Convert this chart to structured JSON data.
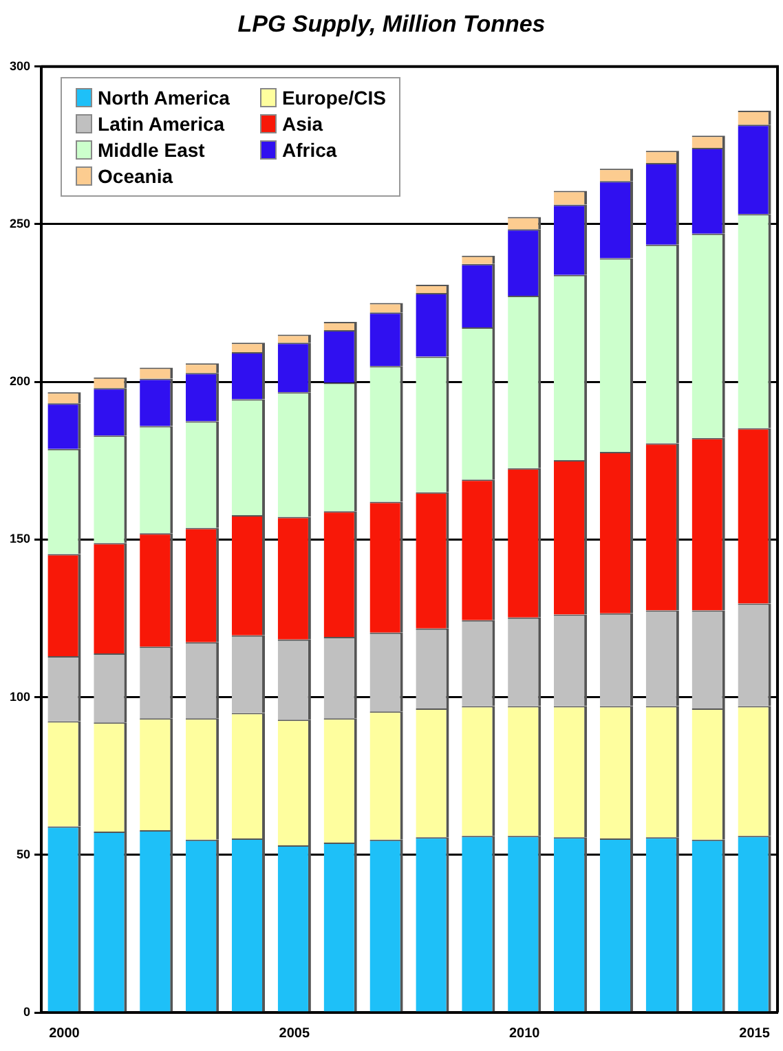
{
  "chart_data": {
    "type": "bar",
    "title": "LPG Supply, Million Tonnes",
    "stacked": true,
    "categories": [
      "2000",
      null,
      null,
      null,
      null,
      "2005",
      null,
      null,
      null,
      null,
      "2010",
      null,
      null,
      null,
      null,
      "2015"
    ],
    "ylim": [
      0,
      300
    ],
    "yticks": [
      0,
      50,
      100,
      150,
      200,
      250,
      300
    ],
    "grid": "y",
    "legend": "top left",
    "series": [
      {
        "name": "North America",
        "color": "#1ec0f8",
        "values": [
          59,
          57.4,
          57.8,
          54.8,
          55.2,
          53,
          53.9,
          54.8,
          55.6,
          56,
          56,
          55.6,
          55.2,
          55.6,
          54.8,
          56
        ]
      },
      {
        "name": "Europe/CIS",
        "color": "#fefe9e",
        "values": [
          33.4,
          34.6,
          35.5,
          38.5,
          39.8,
          39.9,
          39.4,
          40.7,
          40.8,
          41.2,
          41.2,
          41.6,
          42,
          41.6,
          41.6,
          41.2
        ]
      },
      {
        "name": "Latin America",
        "color": "#c0c0c0",
        "values": [
          20.6,
          21.9,
          22.7,
          24.1,
          24.6,
          25.4,
          25.8,
          25,
          25.4,
          27.2,
          28.1,
          29,
          29.4,
          30.3,
          31.1,
          32.5
        ]
      },
      {
        "name": "Asia",
        "color": "#f81808",
        "values": [
          32.4,
          35,
          36,
          36.3,
          38.1,
          38.9,
          39.9,
          41.5,
          43.2,
          44.6,
          47.3,
          49,
          51.2,
          53,
          54.7,
          55.6
        ]
      },
      {
        "name": "Middle East",
        "color": "#ccffcc",
        "values": [
          33.3,
          34.1,
          34,
          33.8,
          36.8,
          39.5,
          40.7,
          43,
          43,
          48.3,
          54.7,
          58.7,
          61.4,
          63,
          64.8,
          67.9
        ]
      },
      {
        "name": "Africa",
        "color": "#3010f0",
        "values": [
          14.5,
          15,
          15,
          15.3,
          14.9,
          15.7,
          16.7,
          17,
          20.2,
          20.1,
          21.1,
          22.3,
          24.5,
          25.9,
          27.2,
          28.4
        ]
      },
      {
        "name": "Oceania",
        "color": "#fccc90",
        "values": [
          3.5,
          3.4,
          3.5,
          3.1,
          3,
          2.6,
          2.6,
          3,
          2.6,
          2.6,
          3.9,
          4.4,
          3.9,
          3.9,
          3.9,
          4.4
        ]
      }
    ]
  }
}
